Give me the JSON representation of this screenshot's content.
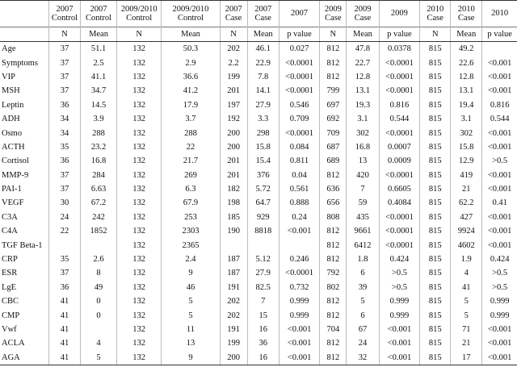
{
  "header": {
    "groups": [
      "2007 Control",
      "2007 Control",
      "2009/2010 Control",
      "2009/2010 Control",
      "2007 Case",
      "2007 Case",
      "2007",
      "2009 Case",
      "2009 Case",
      "2009",
      "2010 Case",
      "2010 Case",
      "2010"
    ],
    "sub": [
      "N",
      "Mean",
      "N",
      "Mean",
      "N",
      "Mean",
      "p value",
      "N",
      "Mean",
      "p value",
      "N",
      "Mean",
      "p value"
    ]
  },
  "rows": [
    {
      "label": "Age",
      "cells": [
        "37",
        "51.1",
        "132",
        "50.3",
        "202",
        "46.1",
        "0.027",
        "812",
        "47.8",
        "0.0378",
        "815",
        "49.2",
        ""
      ]
    },
    {
      "label": "Symptoms",
      "cells": [
        "37",
        "2.5",
        "132",
        "2.9",
        "2.2",
        "22.9",
        "<0.0001",
        "812",
        "22.7",
        "<0.0001",
        "815",
        "22.6",
        "<0.001"
      ]
    },
    {
      "label": "VIP",
      "cells": [
        "37",
        "41.1",
        "132",
        "36.6",
        "199",
        "7.8",
        "<0.0001",
        "812",
        "12.8",
        "<0.0001",
        "815",
        "12.8",
        "<0.001"
      ]
    },
    {
      "label": "MSH",
      "cells": [
        "37",
        "34.7",
        "132",
        "41.2",
        "201",
        "14.1",
        "<0.0001",
        "799",
        "13.1",
        "<0.0001",
        "815",
        "13.1",
        "<0.001"
      ]
    },
    {
      "label": "Leptin",
      "cells": [
        "36",
        "14.5",
        "132",
        "17.9",
        "197",
        "27.9",
        "0.546",
        "697",
        "19.3",
        "0.816",
        "815",
        "19.4",
        "0.816"
      ]
    },
    {
      "label": "ADH",
      "cells": [
        "34",
        "3.9",
        "132",
        "3.7",
        "192",
        "3.3",
        "0.709",
        "692",
        "3.1",
        "0.544",
        "815",
        "3.1",
        "0.544"
      ]
    },
    {
      "label": "Osmo",
      "cells": [
        "34",
        "288",
        "132",
        "288",
        "200",
        "298",
        "<0.0001",
        "709",
        "302",
        "<0.0001",
        "815",
        "302",
        "<0.001"
      ]
    },
    {
      "label": "ACTH",
      "cells": [
        "35",
        "23.2",
        "132",
        "22",
        "200",
        "15.8",
        "0.084",
        "687",
        "16.8",
        "0.0007",
        "815",
        "15.8",
        "<0.001"
      ]
    },
    {
      "label": "Cortisol",
      "cells": [
        "36",
        "16.8",
        "132",
        "21.7",
        "201",
        "15.4",
        "0.811",
        "689",
        "13",
        "0.0009",
        "815",
        "12.9",
        ">0.5"
      ]
    },
    {
      "label": "MMP-9",
      "cells": [
        "37",
        "284",
        "132",
        "269",
        "201",
        "376",
        "0.04",
        "812",
        "420",
        "<0.0001",
        "815",
        "419",
        "<0.001"
      ]
    },
    {
      "label": "PAI-1",
      "cells": [
        "37",
        "6.63",
        "132",
        "6.3",
        "182",
        "5.72",
        "0.561",
        "636",
        "7",
        "0.6605",
        "815",
        "21",
        "<0.001"
      ]
    },
    {
      "label": "VEGF",
      "cells": [
        "30",
        "67.2",
        "132",
        "67.9",
        "198",
        "64.7",
        "0.888",
        "656",
        "59",
        "0.4084",
        "815",
        "62.2",
        "0.41"
      ]
    },
    {
      "label": "C3A",
      "cells": [
        "24",
        "242",
        "132",
        "253",
        "185",
        "929",
        "0.24",
        "808",
        "435",
        "<0.0001",
        "815",
        "427",
        "<0.001"
      ]
    },
    {
      "label": "C4A",
      "cells": [
        "22",
        "1852",
        "132",
        "2303",
        "190",
        "8818",
        "<0.001",
        "812",
        "9661",
        "<0.0001",
        "815",
        "9924",
        "<0.001"
      ]
    },
    {
      "label": "TGF Beta-1",
      "cells": [
        "",
        "",
        "132",
        "2365",
        "",
        "",
        "",
        "812",
        "6412",
        "<0.0001",
        "815",
        "4602",
        "<0.001"
      ]
    },
    {
      "label": "CRP",
      "cells": [
        "35",
        "2.6",
        "132",
        "2.4",
        "187",
        "5.12",
        "0.246",
        "812",
        "1.8",
        "0.424",
        "815",
        "1.9",
        "0.424"
      ]
    },
    {
      "label": "ESR",
      "cells": [
        "37",
        "8",
        "132",
        "9",
        "187",
        "27.9",
        "<0.0001",
        "792",
        "6",
        ">0.5",
        "815",
        "4",
        ">0.5"
      ]
    },
    {
      "label": "LgE",
      "cells": [
        "36",
        "49",
        "132",
        "46",
        "191",
        "82.5",
        "0.732",
        "802",
        "39",
        ">0.5",
        "815",
        "41",
        ">0.5"
      ]
    },
    {
      "label": "CBC",
      "cells": [
        "41",
        "0",
        "132",
        "5",
        "202",
        "7",
        "0.999",
        "812",
        "5",
        "0.999",
        "815",
        "5",
        "0.999"
      ]
    },
    {
      "label": "CMP",
      "cells": [
        "41",
        "0",
        "132",
        "5",
        "202",
        "15",
        "0.999",
        "812",
        "6",
        "0.999",
        "815",
        "5",
        "0.999"
      ]
    },
    {
      "label": "Vwf",
      "cells": [
        "41",
        "",
        "132",
        "11",
        "191",
        "16",
        "<0.001",
        "704",
        "67",
        "<0.001",
        "815",
        "71",
        "<0.001"
      ]
    },
    {
      "label": "ACLA",
      "cells": [
        "41",
        "4",
        "132",
        "13",
        "199",
        "36",
        "<0.001",
        "812",
        "24",
        "<0.001",
        "815",
        "21",
        "<0.001"
      ]
    },
    {
      "label": "AGA",
      "cells": [
        "41",
        "5",
        "132",
        "9",
        "200",
        "16",
        "<0.001",
        "812",
        "32",
        "<0.001",
        "815",
        "17",
        "<0.001"
      ]
    }
  ]
}
